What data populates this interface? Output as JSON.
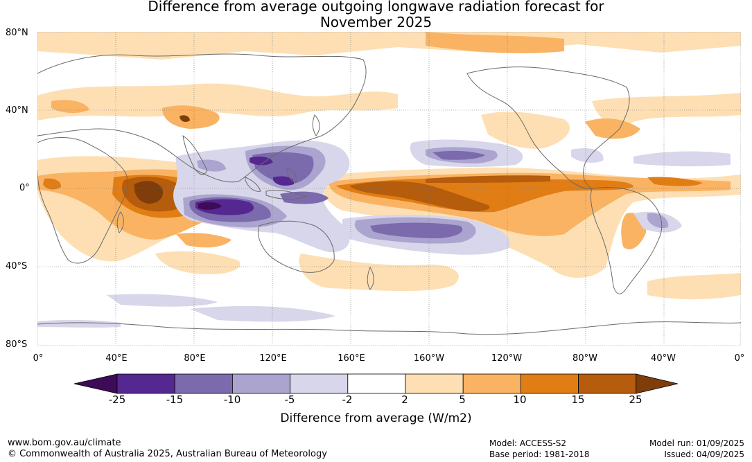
{
  "title_line1": "Difference from average outgoing longwave radiation forecast for",
  "title_line2": "November 2025",
  "lat_labels": [
    "80°N",
    "40°N",
    "0°",
    "40°S",
    "80°S"
  ],
  "lon_labels": [
    "0°",
    "40°E",
    "80°E",
    "120°E",
    "160°E",
    "160°W",
    "120°W",
    "80°W",
    "40°W",
    "0°"
  ],
  "colorbar": {
    "title": "Difference from average (W/m2)",
    "ticks": [
      "-25",
      "-15",
      "-10",
      "-5",
      "-2",
      "2",
      "5",
      "10",
      "15",
      "25"
    ],
    "colors": [
      "#3d0b57",
      "#552790",
      "#7b6aac",
      "#aba4cf",
      "#d7d6ea",
      "#ffffff",
      "#fddfb3",
      "#f9b363",
      "#e07d14",
      "#b55c0d",
      "#7e3d0a"
    ]
  },
  "footer": {
    "url": "www.bom.gov.au/climate",
    "copyright": "© Commonwealth of Australia 2025, Australian Bureau of Meteorology",
    "model": "Model: ACCESS-S2",
    "base_period": "Base period: 1981-2018",
    "model_run": "Model run: 01/09/2025",
    "issued": "Issued: 04/09/2025"
  }
}
